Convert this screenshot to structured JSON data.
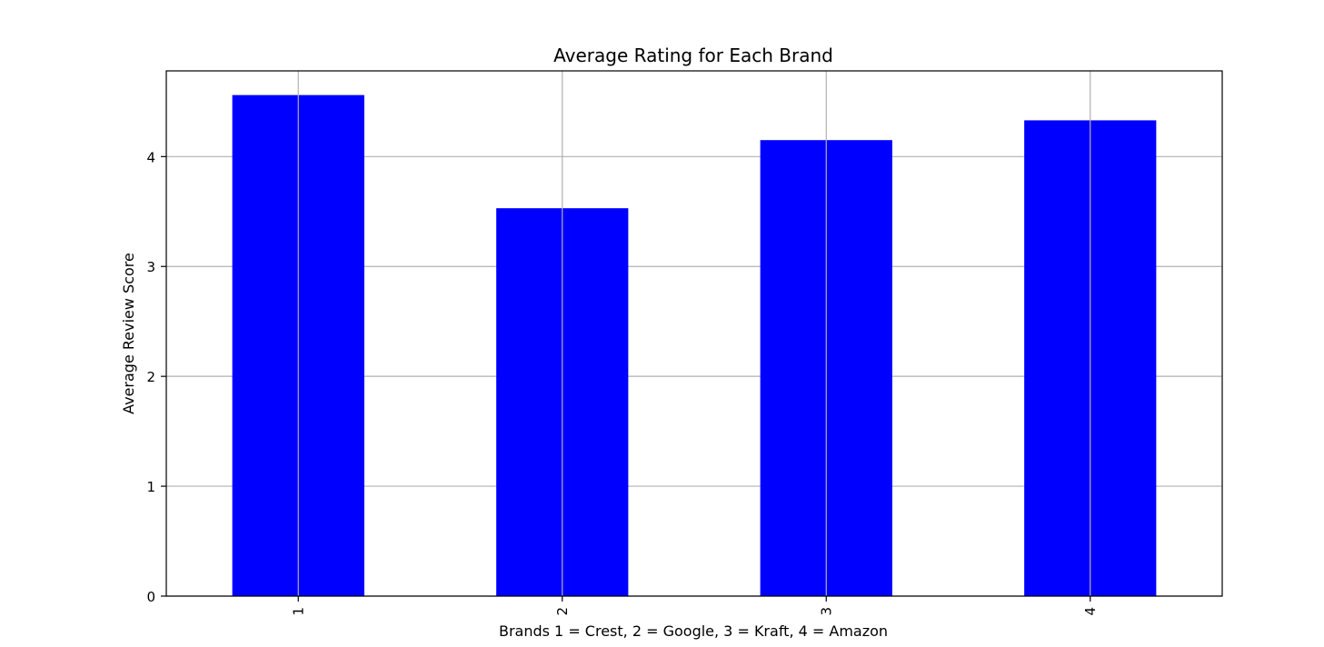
{
  "chart_data": {
    "type": "bar",
    "title": "Average Rating for Each Brand",
    "xlabel": "Brands 1 = Crest, 2 = Google, 3 = Kraft, 4 = Amazon",
    "ylabel": "Average Review Score",
    "categories": [
      "1",
      "2",
      "3",
      "4"
    ],
    "values": [
      4.56,
      3.53,
      4.15,
      4.33
    ],
    "ylim": [
      0,
      4.78
    ],
    "yticks": [
      0,
      1,
      2,
      3,
      4
    ],
    "ytick_labels": [
      "0",
      "1",
      "2",
      "3",
      "4"
    ],
    "grid": true,
    "legend": "none",
    "bar_color": "#0000ff",
    "grid_color": "#b0b0b0"
  }
}
